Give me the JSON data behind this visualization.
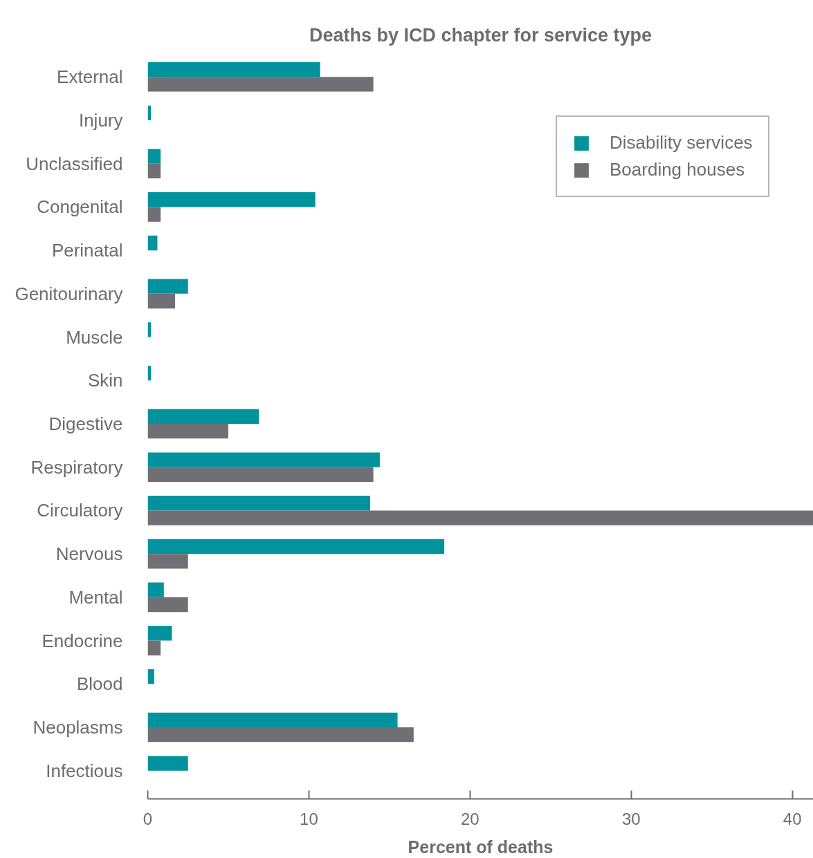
{
  "chart_data": {
    "type": "bar",
    "orientation": "horizontal",
    "title": "Deaths by ICD chapter for service type",
    "xlabel": "Percent of deaths",
    "categories": [
      "External",
      "Injury",
      "Unclassified",
      "Congenital",
      "Perinatal",
      "Genitourinary",
      "Muscle",
      "Skin",
      "Digestive",
      "Respiratory",
      "Circulatory",
      "Nervous",
      "Mental",
      "Endocrine",
      "Blood",
      "Neoplasms",
      "Infectious"
    ],
    "series": [
      {
        "name": "Disability services",
        "color": "#00939e",
        "values": [
          10.7,
          0.2,
          0.8,
          10.4,
          0.6,
          2.5,
          0.2,
          0.2,
          6.9,
          14.4,
          13.8,
          18.4,
          1.0,
          1.5,
          0.4,
          15.5,
          2.5
        ]
      },
      {
        "name": "Boarding houses",
        "color": "#706f74",
        "values": [
          14.0,
          0,
          0.8,
          0.8,
          0,
          1.7,
          0,
          0,
          5.0,
          14.0,
          41.3,
          2.5,
          2.5,
          0.8,
          0,
          16.5,
          0
        ]
      }
    ],
    "xlim": [
      0,
      41.3
    ],
    "xticks": [
      0,
      10,
      20,
      30,
      40
    ],
    "grid": false,
    "legend": "top right"
  }
}
